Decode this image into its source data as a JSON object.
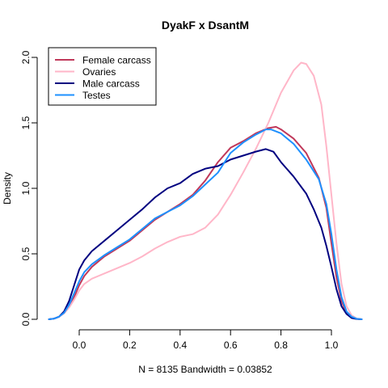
{
  "chart_data": {
    "type": "line",
    "title": "DyakF x DsantM",
    "xlabel": "N = 8135   Bandwidth = 0.03852",
    "ylabel": "Density",
    "xlim": [
      -0.125,
      1.125
    ],
    "ylim": [
      0,
      2.0
    ],
    "xticks": [
      "0.0",
      "0.2",
      "0.4",
      "0.6",
      "0.8",
      "1.0"
    ],
    "yticks": [
      "0.0",
      "0.5",
      "1.0",
      "1.5",
      "2.0"
    ],
    "legend_position": "top-left",
    "grid": false,
    "series": [
      {
        "name": "Female carcass",
        "color": "#c0385a",
        "points": [
          [
            -0.12,
            0
          ],
          [
            -0.1,
            0.005
          ],
          [
            -0.08,
            0.02
          ],
          [
            -0.06,
            0.05
          ],
          [
            -0.04,
            0.1
          ],
          [
            -0.02,
            0.17
          ],
          [
            0,
            0.26
          ],
          [
            0.02,
            0.33
          ],
          [
            0.05,
            0.4
          ],
          [
            0.1,
            0.48
          ],
          [
            0.15,
            0.54
          ],
          [
            0.2,
            0.6
          ],
          [
            0.25,
            0.68
          ],
          [
            0.3,
            0.76
          ],
          [
            0.35,
            0.82
          ],
          [
            0.4,
            0.88
          ],
          [
            0.45,
            0.95
          ],
          [
            0.5,
            1.06
          ],
          [
            0.55,
            1.2
          ],
          [
            0.6,
            1.31
          ],
          [
            0.65,
            1.36
          ],
          [
            0.7,
            1.42
          ],
          [
            0.75,
            1.46
          ],
          [
            0.78,
            1.47
          ],
          [
            0.8,
            1.45
          ],
          [
            0.85,
            1.38
          ],
          [
            0.9,
            1.27
          ],
          [
            0.95,
            1.08
          ],
          [
            0.98,
            0.85
          ],
          [
            1.0,
            0.58
          ],
          [
            1.02,
            0.32
          ],
          [
            1.04,
            0.14
          ],
          [
            1.06,
            0.05
          ],
          [
            1.08,
            0.015
          ],
          [
            1.1,
            0.003
          ],
          [
            1.12,
            0
          ]
        ]
      },
      {
        "name": "Ovaries",
        "color": "#ffb6c8",
        "points": [
          [
            -0.12,
            0
          ],
          [
            -0.1,
            0.005
          ],
          [
            -0.08,
            0.018
          ],
          [
            -0.06,
            0.045
          ],
          [
            -0.04,
            0.09
          ],
          [
            -0.02,
            0.15
          ],
          [
            0,
            0.22
          ],
          [
            0.02,
            0.27
          ],
          [
            0.05,
            0.31
          ],
          [
            0.1,
            0.35
          ],
          [
            0.15,
            0.39
          ],
          [
            0.2,
            0.43
          ],
          [
            0.25,
            0.48
          ],
          [
            0.3,
            0.54
          ],
          [
            0.35,
            0.59
          ],
          [
            0.4,
            0.63
          ],
          [
            0.45,
            0.65
          ],
          [
            0.5,
            0.7
          ],
          [
            0.55,
            0.8
          ],
          [
            0.6,
            0.95
          ],
          [
            0.65,
            1.12
          ],
          [
            0.7,
            1.3
          ],
          [
            0.75,
            1.5
          ],
          [
            0.8,
            1.73
          ],
          [
            0.85,
            1.9
          ],
          [
            0.88,
            1.96
          ],
          [
            0.9,
            1.95
          ],
          [
            0.93,
            1.86
          ],
          [
            0.96,
            1.64
          ],
          [
            0.98,
            1.32
          ],
          [
            1.0,
            0.95
          ],
          [
            1.02,
            0.58
          ],
          [
            1.04,
            0.27
          ],
          [
            1.06,
            0.1
          ],
          [
            1.08,
            0.03
          ],
          [
            1.1,
            0.006
          ],
          [
            1.12,
            0
          ]
        ]
      },
      {
        "name": "Male carcass",
        "color": "#000080",
        "points": [
          [
            -0.12,
            0
          ],
          [
            -0.1,
            0.005
          ],
          [
            -0.08,
            0.02
          ],
          [
            -0.06,
            0.06
          ],
          [
            -0.04,
            0.14
          ],
          [
            -0.02,
            0.26
          ],
          [
            0,
            0.38
          ],
          [
            0.02,
            0.45
          ],
          [
            0.05,
            0.52
          ],
          [
            0.1,
            0.6
          ],
          [
            0.15,
            0.68
          ],
          [
            0.2,
            0.76
          ],
          [
            0.25,
            0.84
          ],
          [
            0.3,
            0.93
          ],
          [
            0.35,
            1.0
          ],
          [
            0.4,
            1.04
          ],
          [
            0.45,
            1.11
          ],
          [
            0.5,
            1.15
          ],
          [
            0.55,
            1.17
          ],
          [
            0.6,
            1.22
          ],
          [
            0.65,
            1.25
          ],
          [
            0.7,
            1.28
          ],
          [
            0.74,
            1.3
          ],
          [
            0.77,
            1.28
          ],
          [
            0.8,
            1.2
          ],
          [
            0.85,
            1.09
          ],
          [
            0.9,
            0.96
          ],
          [
            0.93,
            0.84
          ],
          [
            0.96,
            0.7
          ],
          [
            0.98,
            0.56
          ],
          [
            1.0,
            0.4
          ],
          [
            1.02,
            0.23
          ],
          [
            1.04,
            0.1
          ],
          [
            1.06,
            0.04
          ],
          [
            1.08,
            0.01
          ],
          [
            1.1,
            0.002
          ],
          [
            1.12,
            0
          ]
        ]
      },
      {
        "name": "Testes",
        "color": "#1e90ff",
        "points": [
          [
            -0.12,
            0
          ],
          [
            -0.1,
            0.005
          ],
          [
            -0.08,
            0.02
          ],
          [
            -0.06,
            0.05
          ],
          [
            -0.04,
            0.11
          ],
          [
            -0.02,
            0.2
          ],
          [
            0,
            0.29
          ],
          [
            0.02,
            0.36
          ],
          [
            0.05,
            0.42
          ],
          [
            0.1,
            0.49
          ],
          [
            0.15,
            0.55
          ],
          [
            0.2,
            0.61
          ],
          [
            0.25,
            0.69
          ],
          [
            0.3,
            0.77
          ],
          [
            0.35,
            0.82
          ],
          [
            0.4,
            0.87
          ],
          [
            0.45,
            0.94
          ],
          [
            0.5,
            1.03
          ],
          [
            0.55,
            1.12
          ],
          [
            0.6,
            1.27
          ],
          [
            0.65,
            1.35
          ],
          [
            0.7,
            1.41
          ],
          [
            0.74,
            1.45
          ],
          [
            0.76,
            1.45
          ],
          [
            0.8,
            1.42
          ],
          [
            0.85,
            1.34
          ],
          [
            0.9,
            1.22
          ],
          [
            0.95,
            1.07
          ],
          [
            0.98,
            0.88
          ],
          [
            1.0,
            0.65
          ],
          [
            1.02,
            0.38
          ],
          [
            1.04,
            0.17
          ],
          [
            1.06,
            0.06
          ],
          [
            1.08,
            0.02
          ],
          [
            1.1,
            0.004
          ],
          [
            1.12,
            0
          ]
        ]
      }
    ]
  }
}
